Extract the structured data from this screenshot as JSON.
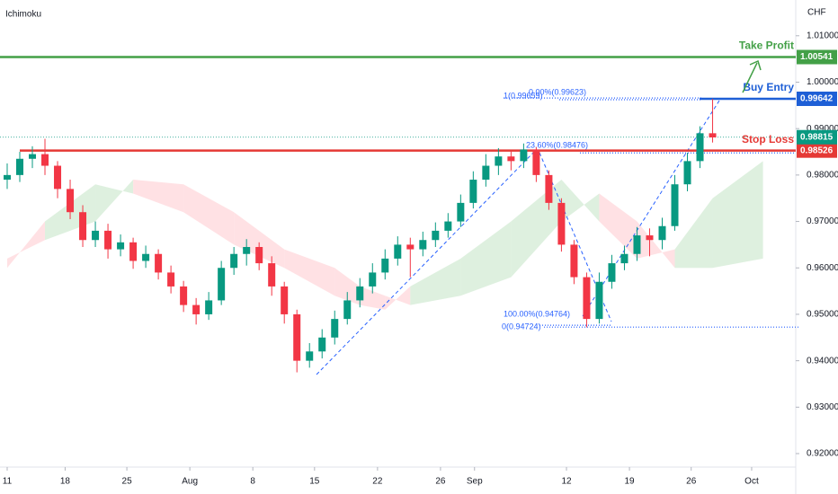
{
  "chart_data": {
    "type": "candlestick",
    "indicator": "Ichimoku",
    "currency": "CHF",
    "xlim": [
      -0.57,
      62.6
    ],
    "ylim": [
      0.9171,
      1.0177
    ],
    "xticks": [
      {
        "value": 0,
        "label": "11"
      },
      {
        "value": 4.6,
        "label": "18"
      },
      {
        "value": 9.5,
        "label": "25"
      },
      {
        "value": 14.5,
        "label": "Aug"
      },
      {
        "value": 19.5,
        "label": "8"
      },
      {
        "value": 24.4,
        "label": "15"
      },
      {
        "value": 29.4,
        "label": "22"
      },
      {
        "value": 34.4,
        "label": "26"
      },
      {
        "value": 37.1,
        "label": "Sep"
      },
      {
        "value": 44.4,
        "label": "12"
      },
      {
        "value": 49.4,
        "label": "19"
      },
      {
        "value": 54.3,
        "label": "26"
      },
      {
        "value": 59.1,
        "label": "Oct"
      }
    ],
    "yticks": [
      {
        "value": 1.01,
        "label": "1.01000"
      },
      {
        "value": 1.0,
        "label": "1.00000"
      },
      {
        "value": 0.99,
        "label": "0.99000"
      },
      {
        "value": 0.98,
        "label": "0.98000"
      },
      {
        "value": 0.97,
        "label": "0.97000"
      },
      {
        "value": 0.96,
        "label": "0.96000"
      },
      {
        "value": 0.95,
        "label": "0.95000"
      },
      {
        "value": 0.94,
        "label": "0.94000"
      },
      {
        "value": 0.93,
        "label": "0.93000"
      },
      {
        "value": 0.92,
        "label": "0.92000"
      }
    ],
    "up_color": "#089981",
    "down_color": "#f23645",
    "candles": [
      [
        0.979,
        0.9825,
        0.977,
        0.98
      ],
      [
        0.98,
        0.985,
        0.9785,
        0.9835
      ],
      [
        0.9835,
        0.9862,
        0.9815,
        0.9845
      ],
      [
        0.9845,
        0.9878,
        0.98,
        0.982
      ],
      [
        0.982,
        0.983,
        0.975,
        0.977
      ],
      [
        0.977,
        0.979,
        0.9705,
        0.972
      ],
      [
        0.972,
        0.9735,
        0.9645,
        0.966
      ],
      [
        0.966,
        0.97,
        0.9645,
        0.968
      ],
      [
        0.968,
        0.9695,
        0.962,
        0.964
      ],
      [
        0.964,
        0.9672,
        0.9625,
        0.9655
      ],
      [
        0.9655,
        0.9665,
        0.9598,
        0.9615
      ],
      [
        0.9615,
        0.9648,
        0.96,
        0.963
      ],
      [
        0.963,
        0.964,
        0.9575,
        0.959
      ],
      [
        0.959,
        0.9605,
        0.9545,
        0.956
      ],
      [
        0.956,
        0.9572,
        0.9505,
        0.952
      ],
      [
        0.952,
        0.9535,
        0.9478,
        0.95
      ],
      [
        0.95,
        0.9548,
        0.9488,
        0.953
      ],
      [
        0.953,
        0.9615,
        0.952,
        0.96
      ],
      [
        0.96,
        0.9645,
        0.9585,
        0.963
      ],
      [
        0.963,
        0.9662,
        0.9605,
        0.9645
      ],
      [
        0.9645,
        0.9655,
        0.9595,
        0.961
      ],
      [
        0.961,
        0.9625,
        0.954,
        0.956
      ],
      [
        0.956,
        0.957,
        0.948,
        0.95
      ],
      [
        0.95,
        0.951,
        0.9375,
        0.94
      ],
      [
        0.94,
        0.9438,
        0.9385,
        0.942
      ],
      [
        0.942,
        0.9468,
        0.9405,
        0.945
      ],
      [
        0.945,
        0.9508,
        0.9435,
        0.949
      ],
      [
        0.949,
        0.9548,
        0.9478,
        0.953
      ],
      [
        0.953,
        0.9578,
        0.9515,
        0.956
      ],
      [
        0.956,
        0.961,
        0.9545,
        0.959
      ],
      [
        0.959,
        0.964,
        0.9575,
        0.962
      ],
      [
        0.962,
        0.9668,
        0.9605,
        0.965
      ],
      [
        0.965,
        0.9665,
        0.958,
        0.964
      ],
      [
        0.964,
        0.9678,
        0.9625,
        0.966
      ],
      [
        0.966,
        0.9698,
        0.9645,
        0.968
      ],
      [
        0.968,
        0.9718,
        0.9665,
        0.97
      ],
      [
        0.97,
        0.9758,
        0.9688,
        0.974
      ],
      [
        0.974,
        0.9808,
        0.9728,
        0.979
      ],
      [
        0.979,
        0.9845,
        0.9775,
        0.982
      ],
      [
        0.982,
        0.9858,
        0.98,
        0.984
      ],
      [
        0.984,
        0.9852,
        0.981,
        0.983
      ],
      [
        0.983,
        0.9868,
        0.9815,
        0.9855
      ],
      [
        0.9855,
        0.986,
        0.9785,
        0.98
      ],
      [
        0.98,
        0.981,
        0.9725,
        0.974
      ],
      [
        0.974,
        0.975,
        0.9635,
        0.965
      ],
      [
        0.965,
        0.966,
        0.9565,
        0.958
      ],
      [
        0.958,
        0.959,
        0.9472,
        0.949
      ],
      [
        0.949,
        0.959,
        0.948,
        0.957
      ],
      [
        0.957,
        0.9628,
        0.9555,
        0.961
      ],
      [
        0.961,
        0.9648,
        0.9595,
        0.963
      ],
      [
        0.963,
        0.9688,
        0.9615,
        0.967
      ],
      [
        0.967,
        0.9685,
        0.9625,
        0.966
      ],
      [
        0.966,
        0.9708,
        0.964,
        0.969
      ],
      [
        0.969,
        0.98,
        0.968,
        0.978
      ],
      [
        0.978,
        0.9848,
        0.9765,
        0.983
      ],
      [
        0.983,
        0.9905,
        0.9815,
        0.989
      ],
      [
        0.989,
        0.9964,
        0.987,
        0.9881
      ]
    ],
    "cloud": {
      "x": [
        0,
        3,
        7,
        10,
        14,
        18,
        22,
        26,
        28,
        30,
        32,
        36,
        40,
        44,
        47,
        50,
        53,
        56,
        60
      ],
      "span_a": [
        0.96,
        0.97,
        0.978,
        0.976,
        0.972,
        0.965,
        0.96,
        0.954,
        0.952,
        0.951,
        0.956,
        0.962,
        0.97,
        0.979,
        0.97,
        0.962,
        0.964,
        0.975,
        0.983
      ],
      "span_b": [
        0.962,
        0.966,
        0.97,
        0.979,
        0.978,
        0.972,
        0.964,
        0.96,
        0.956,
        0.954,
        0.952,
        0.954,
        0.958,
        0.97,
        0.976,
        0.97,
        0.96,
        0.96,
        0.962
      ],
      "bull_color": "#c8e6c9",
      "bear_color": "#ffcdd2"
    },
    "levels": [
      {
        "name": "Take Profit",
        "value": 1.00541,
        "value_label": "1.00541",
        "color": "#43a047"
      },
      {
        "name": "Buy Entry",
        "value": 0.99642,
        "value_label": "0.99642",
        "color": "#1e5fd6"
      },
      {
        "name": "Stop Loss",
        "value": 0.98526,
        "value_label": "0.98526",
        "color": "#e53935"
      }
    ],
    "last_price": {
      "value": 0.98815,
      "label": "0.98815",
      "color": "#089981"
    },
    "fib_levels": [
      {
        "label": "0.00%(0.99623)",
        "value": 0.99623
      },
      {
        "label": "1(0.99659)",
        "value": 0.99659
      },
      {
        "label": "23.60%(0.98476)",
        "value": 0.98476
      },
      {
        "label": "100.00%(0.94764)",
        "value": 0.94764
      },
      {
        "label": "0(0.94724)",
        "value": 0.94724
      }
    ]
  }
}
